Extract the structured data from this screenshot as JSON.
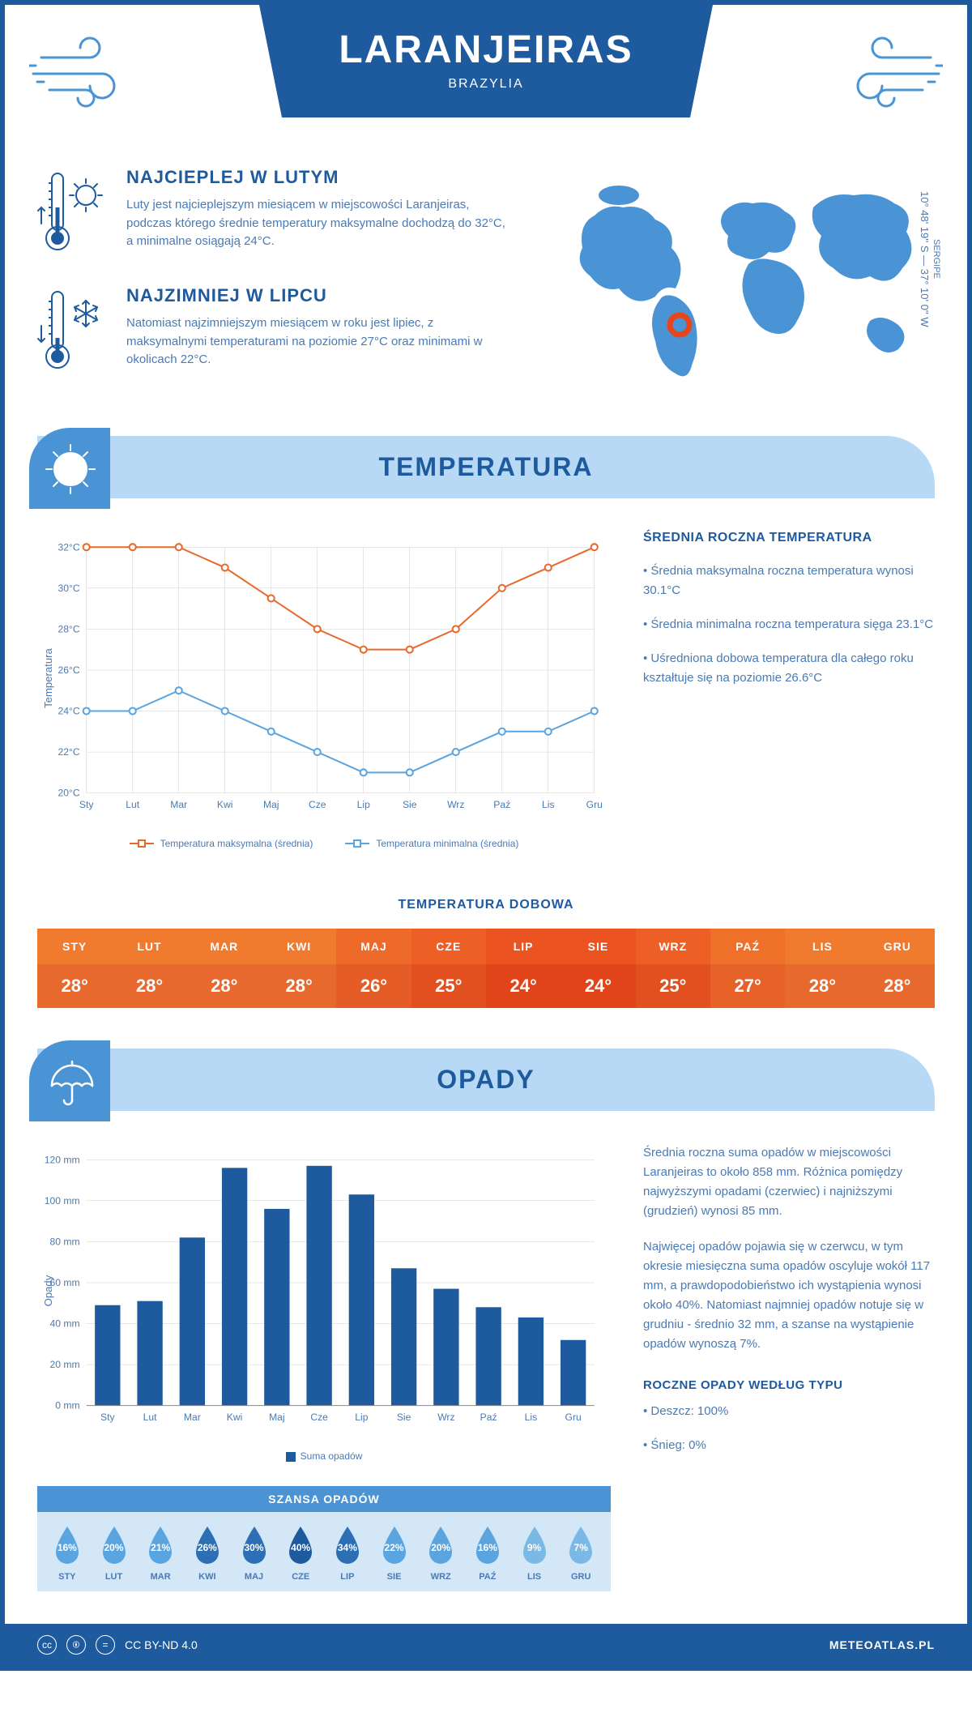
{
  "header": {
    "title": "LARANJEIRAS",
    "subtitle": "BRAZYLIA"
  },
  "colors": {
    "primary": "#1e5a9e",
    "secondary": "#4a94d6",
    "light": "#b8d9f5",
    "text": "#4a7ab5",
    "max_line": "#e8692e",
    "min_line": "#5aa5e0"
  },
  "coords": {
    "region": "SERGIPE",
    "value": "10° 48' 19'' S — 37° 10' 0'' W"
  },
  "facts": {
    "warm": {
      "title": "NAJCIEPLEJ W LUTYM",
      "text": "Luty jest najcieplejszym miesiącem w miejscowości Laranjeiras, podczas którego średnie temperatury maksymalne dochodzą do 32°C, a minimalne osiągają 24°C."
    },
    "cold": {
      "title": "NAJZIMNIEJ W LIPCU",
      "text": "Natomiast najzimniejszym miesiącem w roku jest lipiec, z maksymalnymi temperaturami na poziomie 27°C oraz minimami w okolicach 22°C."
    }
  },
  "temp_section": {
    "title": "TEMPERATURA",
    "info_title": "ŚREDNIA ROCZNA TEMPERATURA",
    "info_items": [
      "• Średnia maksymalna roczna temperatura wynosi 30.1°C",
      "• Średnia minimalna roczna temperatura sięga 23.1°C",
      "• Uśredniona dobowa temperatura dla całego roku kształtuje się na poziomie 26.6°C"
    ],
    "chart": {
      "ylabel": "Temperatura",
      "ylim": [
        20,
        32
      ],
      "ytick_step": 2,
      "months": [
        "Sty",
        "Lut",
        "Mar",
        "Kwi",
        "Maj",
        "Cze",
        "Lip",
        "Sie",
        "Wrz",
        "Paź",
        "Lis",
        "Gru"
      ],
      "max_series": [
        32,
        32,
        32,
        31,
        29.5,
        28,
        27,
        27,
        28,
        30,
        31,
        32
      ],
      "min_series": [
        24,
        24,
        25,
        24,
        23,
        22,
        21,
        21,
        22,
        23,
        23,
        24
      ],
      "legend_max": "Temperatura maksymalna (średnia)",
      "legend_min": "Temperatura minimalna (średnia)"
    },
    "daily": {
      "title": "TEMPERATURA DOBOWA",
      "months": [
        "STY",
        "LUT",
        "MAR",
        "KWI",
        "MAJ",
        "CZE",
        "LIP",
        "SIE",
        "WRZ",
        "PAŹ",
        "LIS",
        "GRU"
      ],
      "values": [
        "28°",
        "28°",
        "28°",
        "28°",
        "26°",
        "25°",
        "24°",
        "24°",
        "25°",
        "27°",
        "28°",
        "28°"
      ],
      "head_colors": [
        "#f07a2e",
        "#f07a2e",
        "#f07a2e",
        "#f07a2e",
        "#ee6a28",
        "#ed5f24",
        "#eb5320",
        "#eb5320",
        "#ed5f24",
        "#ef7028",
        "#f07a2e",
        "#f07a2e"
      ],
      "val_colors": [
        "#e8692e",
        "#e8692e",
        "#e8692e",
        "#e8692e",
        "#e55c26",
        "#e3501f",
        "#e04418",
        "#e04418",
        "#e3501f",
        "#e66228",
        "#e8692e",
        "#e8692e"
      ]
    }
  },
  "precip_section": {
    "title": "OPADY",
    "text1": "Średnia roczna suma opadów w miejscowości Laranjeiras to około 858 mm. Różnica pomiędzy najwyższymi opadami (czerwiec) i najniższymi (grudzień) wynosi 85 mm.",
    "text2": "Najwięcej opadów pojawia się w czerwcu, w tym okresie miesięczna suma opadów oscyluje wokół 117 mm, a prawdopodobieństwo ich wystąpienia wynosi około 40%. Natomiast najmniej opadów notuje się w grudniu - średnio 32 mm, a szanse na wystąpienie opadów wynoszą 7%.",
    "chart": {
      "ylabel": "Opady",
      "ylim": [
        0,
        120
      ],
      "ytick_step": 20,
      "unit": "mm",
      "months": [
        "Sty",
        "Lut",
        "Mar",
        "Kwi",
        "Maj",
        "Cze",
        "Lip",
        "Sie",
        "Wrz",
        "Paź",
        "Lis",
        "Gru"
      ],
      "values": [
        49,
        51,
        82,
        116,
        96,
        117,
        103,
        67,
        57,
        48,
        43,
        32
      ],
      "legend": "Suma opadów",
      "bar_color": "#1e5a9e"
    },
    "chance": {
      "title": "SZANSA OPADÓW",
      "months": [
        "STY",
        "LUT",
        "MAR",
        "KWI",
        "MAJ",
        "CZE",
        "LIP",
        "SIE",
        "WRZ",
        "PAŹ",
        "LIS",
        "GRU"
      ],
      "values": [
        "16%",
        "20%",
        "21%",
        "26%",
        "30%",
        "40%",
        "34%",
        "22%",
        "20%",
        "16%",
        "9%",
        "7%"
      ],
      "drop_colors": [
        "#5aa5e0",
        "#5aa5e0",
        "#5aa5e0",
        "#2c6fb5",
        "#2c6fb5",
        "#1e5a9e",
        "#2c6fb5",
        "#5aa5e0",
        "#5aa5e0",
        "#5aa5e0",
        "#7ab8e5",
        "#7ab8e5"
      ]
    },
    "type": {
      "title": "ROCZNE OPADY WEDŁUG TYPU",
      "items": [
        "• Deszcz: 100%",
        "• Śnieg: 0%"
      ]
    }
  },
  "footer": {
    "license": "CC BY-ND 4.0",
    "site": "METEOATLAS.PL"
  }
}
